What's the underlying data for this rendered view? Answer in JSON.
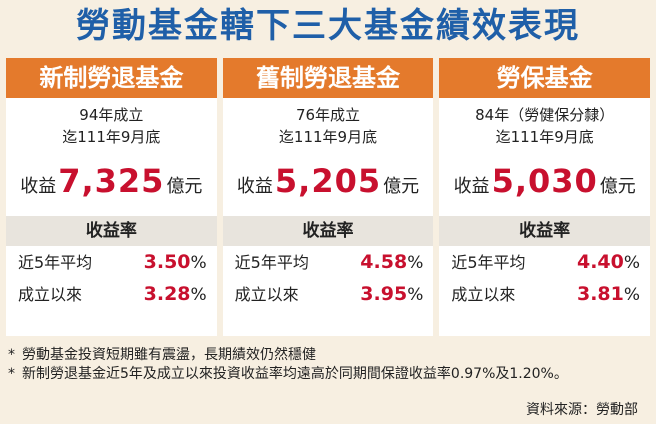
{
  "title": "勞動基金轄下三大基金績效表現",
  "funds": [
    {
      "name": "新制勞退基金",
      "founded_line1": "94年成立",
      "founded_line2": "迄111年9月底",
      "returns_label": "收益",
      "returns_value": "7,325",
      "returns_unit": "億元",
      "rate_header": "收益率",
      "rates": [
        {
          "label": "近5年平均",
          "value": "3.50",
          "unit": "%"
        },
        {
          "label": "成立以來",
          "value": "3.28",
          "unit": "%"
        }
      ]
    },
    {
      "name": "舊制勞退基金",
      "founded_line1": "76年成立",
      "founded_line2": "迄111年9月底",
      "returns_label": "收益",
      "returns_value": "5,205",
      "returns_unit": "億元",
      "rate_header": "收益率",
      "rates": [
        {
          "label": "近5年平均",
          "value": "4.58",
          "unit": "%"
        },
        {
          "label": "成立以來",
          "value": "3.95",
          "unit": "%"
        }
      ]
    },
    {
      "name": "勞保基金",
      "founded_line1": "84年（勞健保分隸）",
      "founded_line2": "迄111年9月底",
      "returns_label": "收益",
      "returns_value": "5,030",
      "returns_unit": "億元",
      "rate_header": "收益率",
      "rates": [
        {
          "label": "近5年平均",
          "value": "4.40",
          "unit": "%"
        },
        {
          "label": "成立以來",
          "value": "3.81",
          "unit": "%"
        }
      ]
    }
  ],
  "notes": [
    {
      "star": "*",
      "text": "勞動基金投資短期雖有震盪，長期績效仍然穩健"
    },
    {
      "star": "*",
      "text": "新制勞退基金近5年及成立以來投資收益率均遠高於同期間保證收益率0.97%及1.20%。"
    }
  ],
  "source": "資料來源：勞動部",
  "colors": {
    "title": "#1f5fa8",
    "header": "#e47a2c",
    "value": "#c8102e",
    "background": "#f7efe1"
  }
}
